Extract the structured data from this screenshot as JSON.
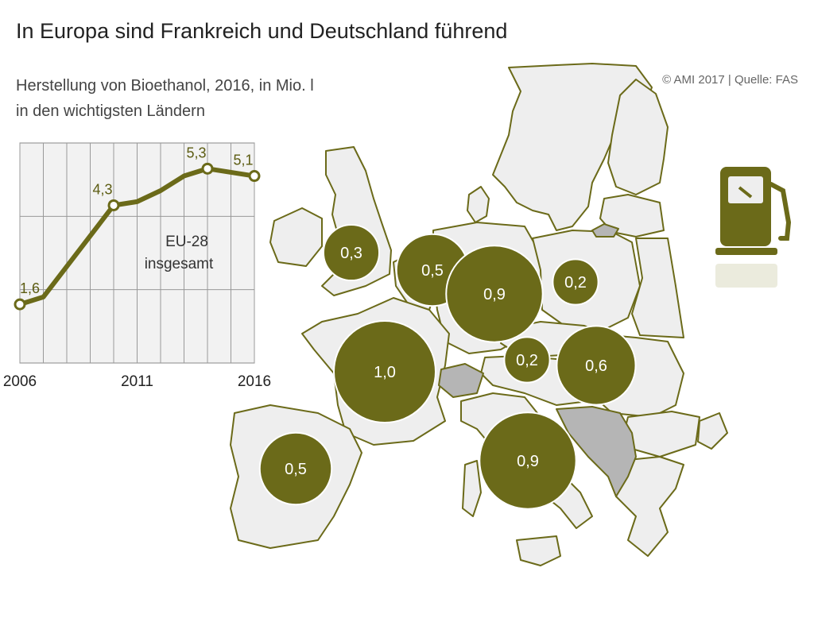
{
  "title": "In Europa sind Frankreich und Deutschland führend",
  "subtitle_line1": "Herstellung von Bioethanol, 2016, in Mio. l",
  "subtitle_line2": "in den wichtigsten Ländern",
  "credit": "© AMI 2017 | Quelle: FAS",
  "colors": {
    "olive": "#6b6a19",
    "land": "#eeeeee",
    "border": "#6b6a19",
    "highlight": "#b5b5b5"
  },
  "icon": "fuel-pump-icon",
  "chart_data": [
    {
      "type": "line",
      "x": [
        2006,
        2007,
        2010,
        2011,
        2012,
        2013,
        2014,
        2015,
        2016
      ],
      "values": [
        1.6,
        1.8,
        4.3,
        4.4,
        4.7,
        5.1,
        5.3,
        5.2,
        5.1
      ],
      "point_labels": [
        {
          "x": 2006,
          "text": "1,6"
        },
        {
          "x": 2010,
          "text": "4,3"
        },
        {
          "x": 2014,
          "text": "5,3"
        },
        {
          "x": 2016,
          "text": "5,1"
        }
      ],
      "x_tick_labels": [
        "2006",
        "2011",
        "2016"
      ],
      "annotation_line1": "EU-28",
      "annotation_line2": "insgesamt",
      "ylim": [
        0,
        6
      ],
      "grid": true
    },
    {
      "type": "bubble-map",
      "bubbles": [
        {
          "value": 0.3,
          "label": "0,3"
        },
        {
          "value": 0.5,
          "label": "0,5"
        },
        {
          "value": 0.9,
          "label": "0,9"
        },
        {
          "value": 0.2,
          "label": "0,2"
        },
        {
          "value": 1.0,
          "label": "1,0"
        },
        {
          "value": 0.2,
          "label": "0,2"
        },
        {
          "value": 0.6,
          "label": "0,6"
        },
        {
          "value": 0.5,
          "label": "0,5"
        },
        {
          "value": 0.9,
          "label": "0,9"
        }
      ]
    }
  ]
}
